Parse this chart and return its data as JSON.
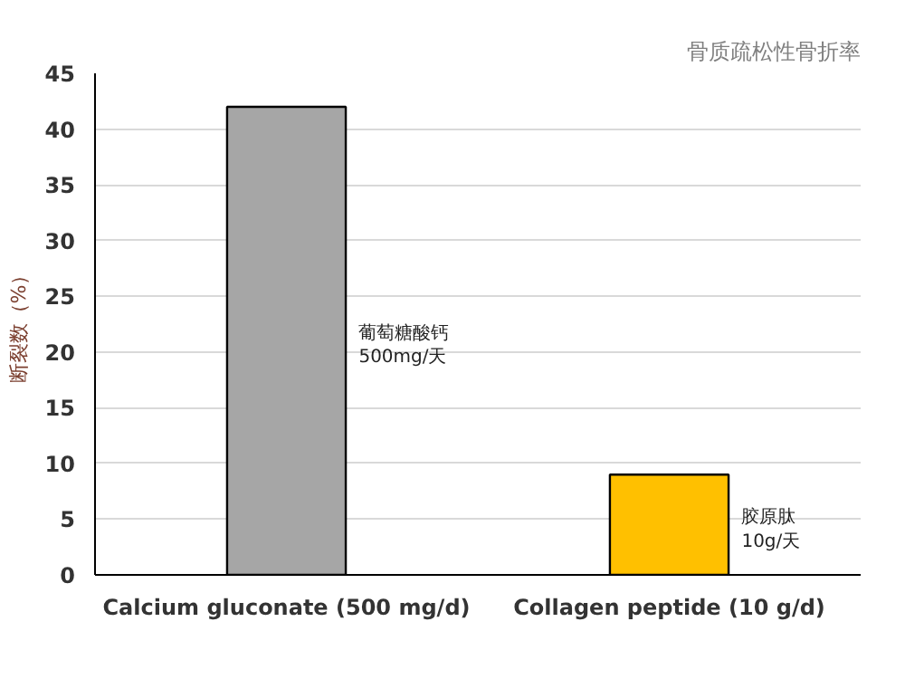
{
  "chart_data": {
    "type": "bar",
    "title": "骨质疏松性骨折率",
    "ylabel": "断裂数（%）",
    "categories": [
      "Calcium gluconate (500 mg/d)",
      "Collagen peptide (10 g/d)"
    ],
    "values": [
      42,
      9
    ],
    "colors": [
      "#a6a6a6",
      "#ffc000"
    ],
    "ylim": [
      0,
      45
    ],
    "yticks": [
      0,
      5,
      10,
      15,
      20,
      25,
      30,
      35,
      40,
      45
    ],
    "grid": "y",
    "annotations": [
      "葡萄糖酸钙\n500mg/天",
      "胶原肽\n10g/天"
    ]
  }
}
